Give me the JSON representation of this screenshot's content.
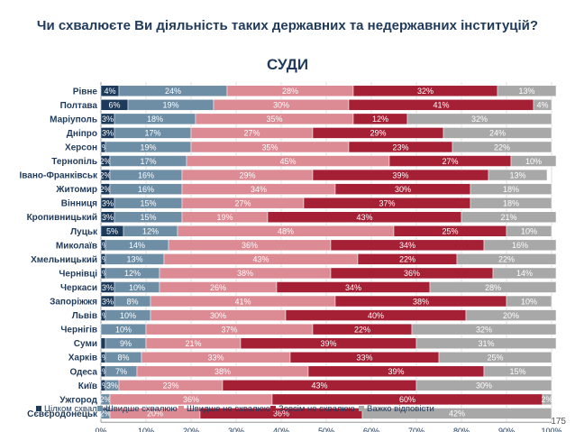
{
  "page_number": "175",
  "chart_data": {
    "type": "bar",
    "orientation": "horizontal",
    "stacked": "percent",
    "title": "Чи схвалюєте Ви діяльність таких державних та недержавних інституцій?",
    "subtitle": "СУДИ",
    "xlim": [
      0,
      100
    ],
    "xticks": [
      "0%",
      "10%",
      "20%",
      "30%",
      "40%",
      "50%",
      "60%",
      "70%",
      "80%",
      "90%",
      "100%"
    ],
    "legend_position": "bottom",
    "grid": true,
    "categories": [
      "Рівне",
      "Полтава",
      "Маріуполь",
      "Дніпро",
      "Херсон",
      "Тернопіль",
      "Івано-Франківськ",
      "Житомир",
      "Вінниця",
      "Кропивницький",
      "Луцьк",
      "Миколаїв",
      "Хмельницький",
      "Чернівці",
      "Черкаси",
      "Запоріжжя",
      "Львів",
      "Чернігів",
      "Суми",
      "Харків",
      "Одеса",
      "Київ",
      "Ужгород",
      "Сєвєродонецьк"
    ],
    "series": [
      {
        "name": "Цілком схвалюю",
        "color": "#1c3a5c",
        "values": [
          4,
          6,
          3,
          3,
          1,
          2,
          2,
          2,
          3,
          3,
          5,
          1,
          1,
          1,
          3,
          3,
          1,
          0,
          1,
          1,
          1,
          1,
          0,
          0
        ],
        "labels": [
          "4%",
          "6%",
          "3%",
          "3%",
          "1%",
          "2%",
          "2%",
          "2%",
          "3%",
          "3%",
          "5%",
          "1%",
          "1%",
          "1%",
          "3%",
          "3%",
          "1%",
          "",
          "",
          "1%",
          "1%",
          "1%",
          "",
          ""
        ]
      },
      {
        "name": "Швидше схвалюю",
        "color": "#6e8ea6",
        "values": [
          24,
          19,
          18,
          17,
          19,
          17,
          16,
          16,
          15,
          15,
          12,
          14,
          13,
          12,
          10,
          8,
          10,
          10,
          9,
          8,
          7,
          3,
          2,
          2
        ],
        "labels": [
          "24%",
          "19%",
          "18%",
          "17%",
          "19%",
          "17%",
          "16%",
          "16%",
          "15%",
          "15%",
          "12%",
          "14%",
          "13%",
          "12%",
          "10%",
          "8%",
          "10%",
          "10%",
          "9%",
          "8%",
          "7%",
          "3%",
          "2%",
          "2%"
        ]
      },
      {
        "name": "Швидше не схвалюю",
        "color": "#dc8a93",
        "values": [
          28,
          30,
          35,
          27,
          35,
          45,
          29,
          34,
          27,
          19,
          48,
          36,
          43,
          38,
          26,
          41,
          30,
          37,
          21,
          33,
          38,
          23,
          36,
          20
        ],
        "labels": [
          "28%",
          "30%",
          "35%",
          "27%",
          "35%",
          "45%",
          "29%",
          "34%",
          "27%",
          "19%",
          "48%",
          "36%",
          "43%",
          "38%",
          "26%",
          "41%",
          "30%",
          "37%",
          "21%",
          "33%",
          "38%",
          "23%",
          "36%",
          "20%"
        ]
      },
      {
        "name": "Зовсім не схвалюю",
        "color": "#a62035",
        "values": [
          32,
          41,
          12,
          29,
          23,
          27,
          39,
          30,
          37,
          43,
          25,
          34,
          22,
          36,
          34,
          38,
          40,
          22,
          39,
          33,
          39,
          43,
          60,
          36
        ],
        "labels": [
          "32%",
          "41%",
          "12%",
          "29%",
          "23%",
          "27%",
          "39%",
          "30%",
          "37%",
          "43%",
          "25%",
          "34%",
          "22%",
          "36%",
          "34%",
          "38%",
          "40%",
          "22%",
          "39%",
          "33%",
          "39%",
          "43%",
          "60%",
          "36%"
        ]
      },
      {
        "name": "Важко відповісти",
        "color": "#a8a8a8",
        "values": [
          13,
          4,
          32,
          24,
          22,
          10,
          13,
          18,
          18,
          21,
          10,
          16,
          22,
          14,
          28,
          10,
          20,
          32,
          31,
          25,
          15,
          30,
          2,
          42
        ],
        "labels": [
          "13%",
          "4%",
          "32%",
          "24%",
          "22%",
          "10%",
          "13%",
          "18%",
          "18%",
          "21%",
          "10%",
          "16%",
          "22%",
          "14%",
          "28%",
          "10%",
          "20%",
          "32%",
          "31%",
          "25%",
          "15%",
          "30%",
          "2%",
          "42%"
        ]
      }
    ]
  }
}
